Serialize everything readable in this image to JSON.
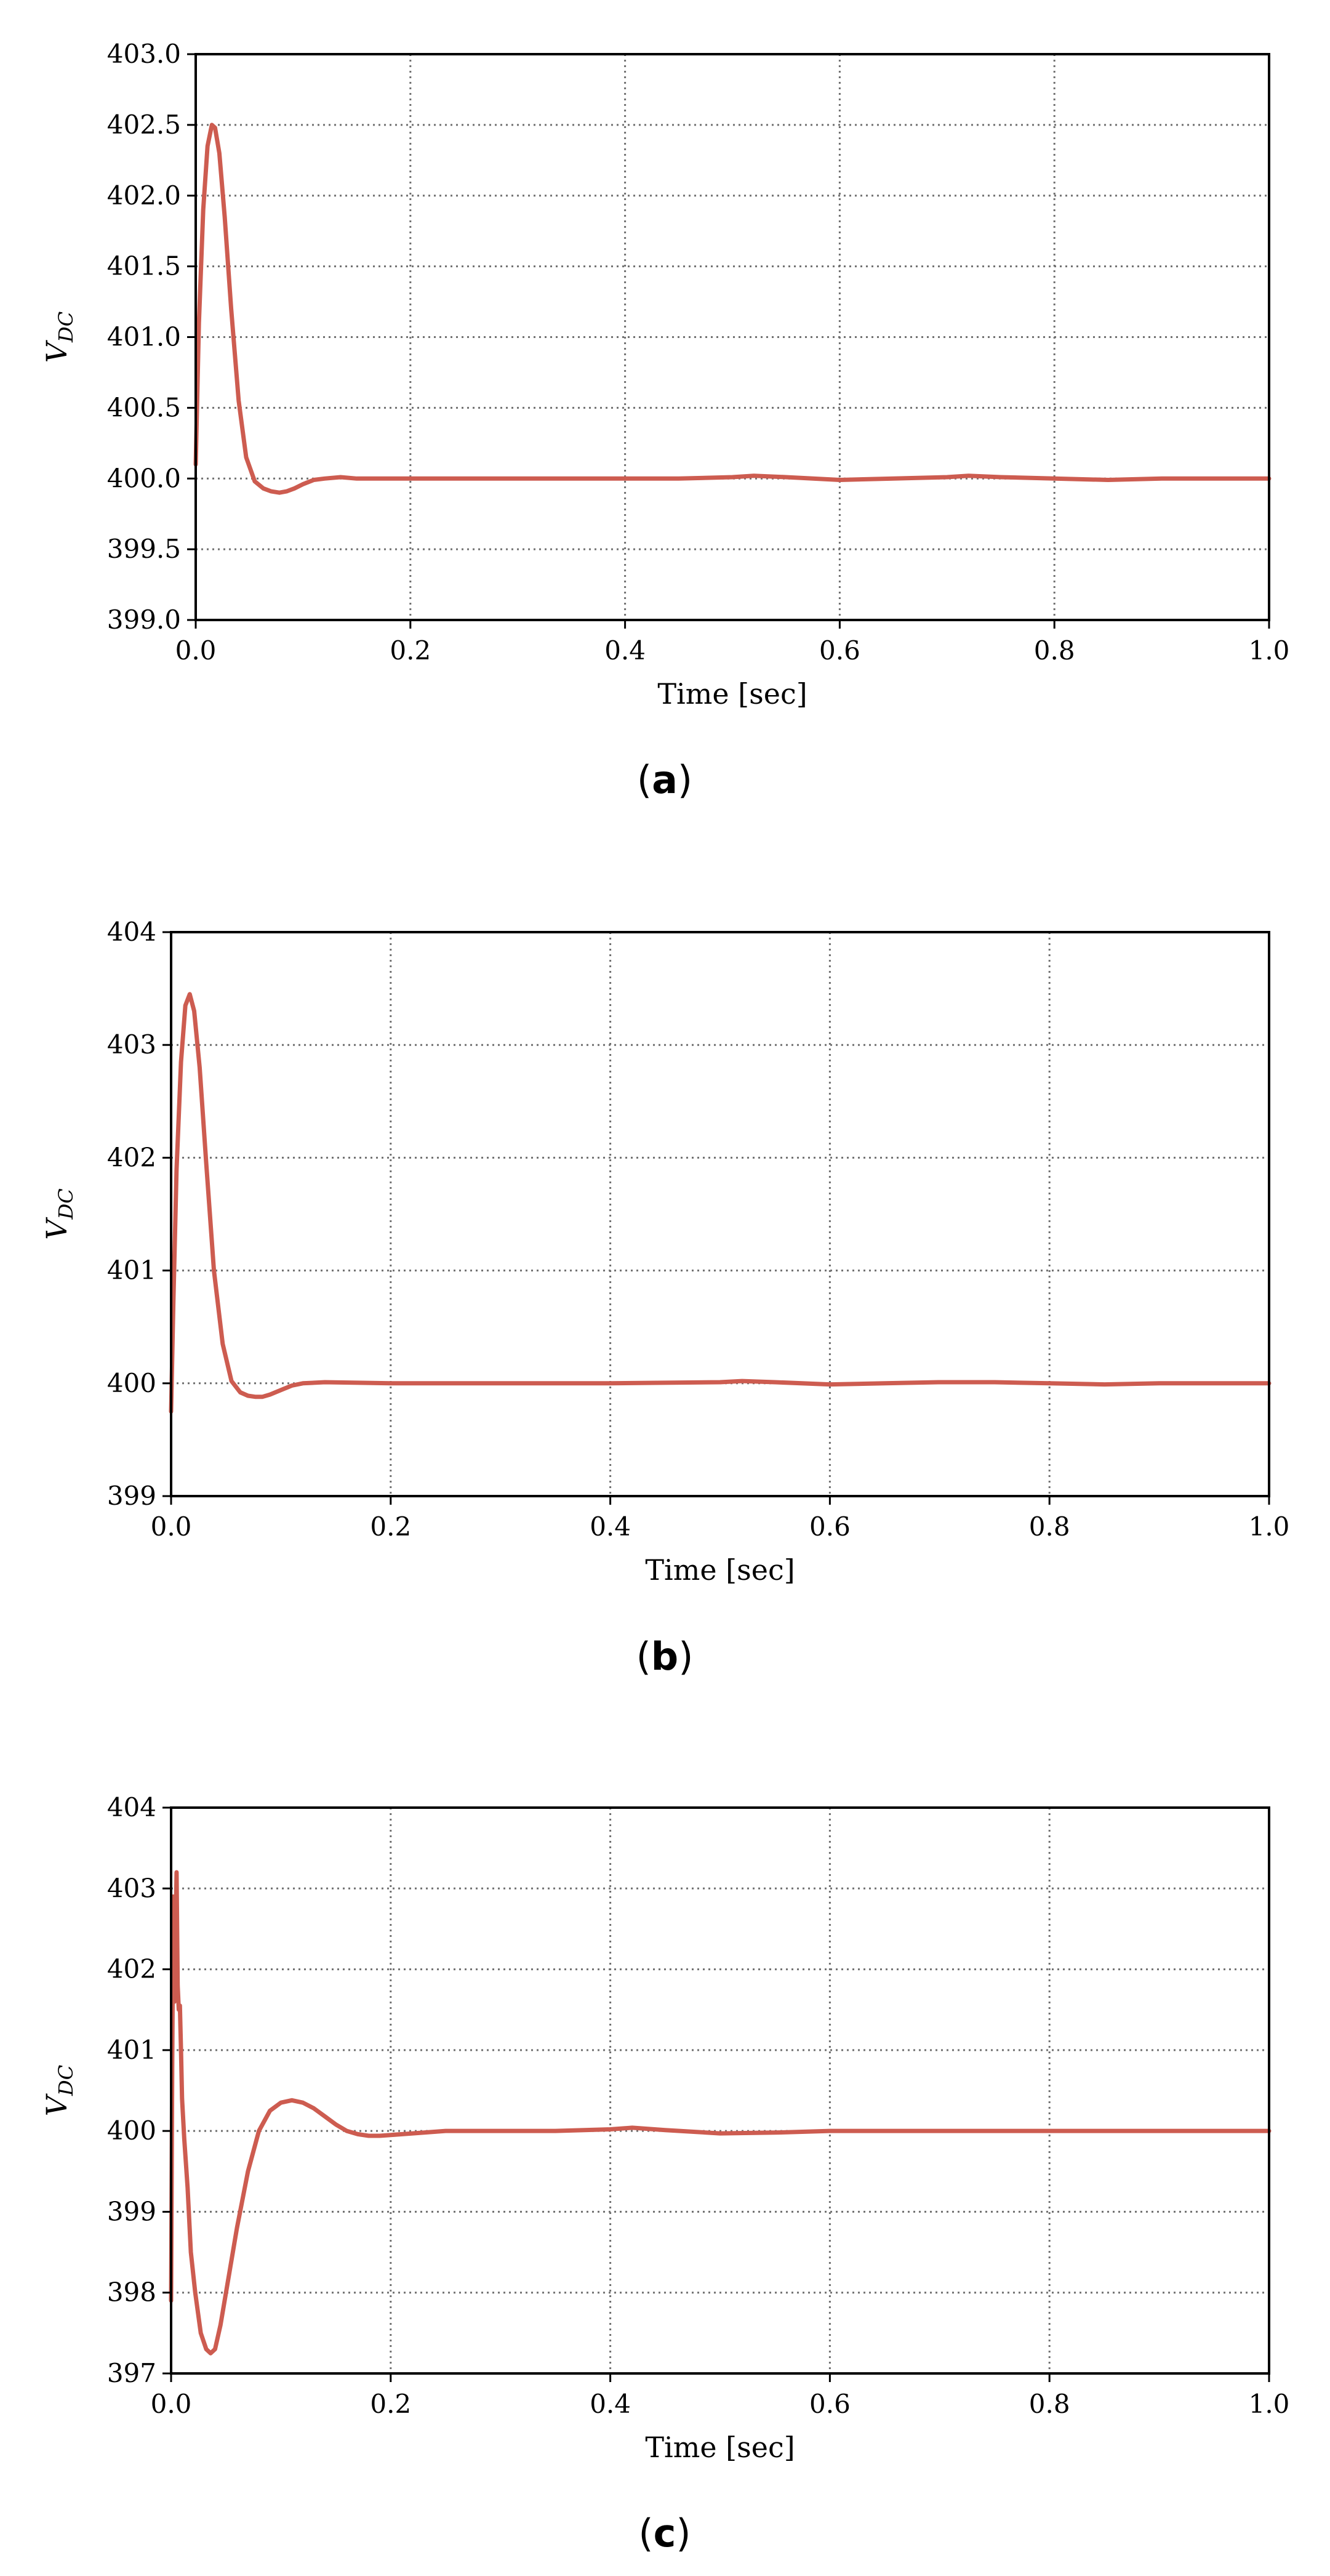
{
  "figure": {
    "colors": {
      "series_line": "#cd5c50",
      "grid": "#707070",
      "frame": "#000000"
    }
  },
  "chart_data": [
    {
      "type": "line",
      "caption": "(a)",
      "caption_letter": "a",
      "xlabel": "Time [sec]",
      "ylabel": "V_DC",
      "xlim": [
        0.0,
        1.0
      ],
      "ylim": [
        399.0,
        403.0
      ],
      "xticks": [
        0.0,
        0.2,
        0.4,
        0.6,
        0.8,
        1.0
      ],
      "xtick_labels": [
        "0.0",
        "0.2",
        "0.4",
        "0.6",
        "0.8",
        "1.0"
      ],
      "yticks": [
        399.0,
        399.5,
        400.0,
        400.5,
        401.0,
        401.5,
        402.0,
        402.5,
        403.0
      ],
      "ytick_labels": [
        "399.0",
        "399.5",
        "400.0",
        "400.5",
        "401.0",
        "401.5",
        "402.0",
        "402.5",
        "403.0"
      ],
      "grid": true,
      "grid_style": "dotted",
      "series": [
        {
          "x": [
            0,
            0.003,
            0.007,
            0.011,
            0.015,
            0.018,
            0.022,
            0.027,
            0.033,
            0.04,
            0.047,
            0.055,
            0.063,
            0.07,
            0.078,
            0.085,
            0.092,
            0.1,
            0.11,
            0.12,
            0.135,
            0.15,
            0.2,
            0.3,
            0.4,
            0.45,
            0.5,
            0.52,
            0.55,
            0.6,
            0.65,
            0.7,
            0.72,
            0.75,
            0.8,
            0.85,
            0.9,
            0.95,
            1.0
          ],
          "y": [
            400.1,
            401.1,
            401.9,
            402.35,
            402.5,
            402.48,
            402.3,
            401.85,
            401.2,
            400.55,
            400.15,
            399.98,
            399.93,
            399.91,
            399.9,
            399.91,
            399.93,
            399.96,
            399.99,
            400.0,
            400.01,
            400.0,
            400.0,
            400.0,
            400.0,
            400.0,
            400.01,
            400.02,
            400.01,
            399.99,
            400.0,
            400.01,
            400.02,
            400.01,
            400.0,
            399.99,
            400.0,
            400.0,
            400.0
          ]
        }
      ]
    },
    {
      "type": "line",
      "caption": "(b)",
      "caption_letter": "b",
      "xlabel": "Time [sec]",
      "ylabel": "V_DC",
      "xlim": [
        0.0,
        1.0
      ],
      "ylim": [
        399,
        404
      ],
      "xticks": [
        0.0,
        0.2,
        0.4,
        0.6,
        0.8,
        1.0
      ],
      "xtick_labels": [
        "0.0",
        "0.2",
        "0.4",
        "0.6",
        "0.8",
        "1.0"
      ],
      "yticks": [
        399,
        400,
        401,
        402,
        403,
        404
      ],
      "ytick_labels": [
        "399",
        "400",
        "401",
        "402",
        "403",
        "404"
      ],
      "grid": true,
      "grid_style": "dotted",
      "series": [
        {
          "x": [
            0,
            0.002,
            0.005,
            0.009,
            0.013,
            0.017,
            0.021,
            0.026,
            0.032,
            0.039,
            0.047,
            0.055,
            0.063,
            0.07,
            0.077,
            0.083,
            0.09,
            0.1,
            0.11,
            0.12,
            0.14,
            0.2,
            0.3,
            0.4,
            0.5,
            0.52,
            0.55,
            0.6,
            0.65,
            0.7,
            0.75,
            0.8,
            0.85,
            0.9,
            1.0
          ],
          "y": [
            399.75,
            400.7,
            401.9,
            402.85,
            403.35,
            403.45,
            403.3,
            402.8,
            401.95,
            401.0,
            400.35,
            400.02,
            399.92,
            399.89,
            399.88,
            399.88,
            399.9,
            399.94,
            399.98,
            400.0,
            400.01,
            400.0,
            400.0,
            400.0,
            400.01,
            400.02,
            400.01,
            399.99,
            400.0,
            400.01,
            400.01,
            400.0,
            399.99,
            400.0,
            400.0
          ]
        }
      ]
    },
    {
      "type": "line",
      "caption": "(c)",
      "caption_letter": "c",
      "xlabel": "Time [sec]",
      "ylabel": "V_DC",
      "xlim": [
        0.0,
        1.0
      ],
      "ylim": [
        397,
        404
      ],
      "xticks": [
        0.0,
        0.2,
        0.4,
        0.6,
        0.8,
        1.0
      ],
      "xtick_labels": [
        "0.0",
        "0.2",
        "0.4",
        "0.6",
        "0.8",
        "1.0"
      ],
      "yticks": [
        397,
        398,
        399,
        400,
        401,
        402,
        403,
        404
      ],
      "ytick_labels": [
        "397",
        "398",
        "399",
        "400",
        "401",
        "402",
        "403",
        "404"
      ],
      "grid": true,
      "grid_style": "dotted",
      "series": [
        {
          "x": [
            0,
            0.001,
            0.002,
            0.003,
            0.004,
            0.005,
            0.006,
            0.007,
            0.008,
            0.009,
            0.01,
            0.012,
            0.015,
            0.018,
            0.022,
            0.027,
            0.032,
            0.036,
            0.04,
            0.045,
            0.05,
            0.06,
            0.07,
            0.08,
            0.09,
            0.1,
            0.11,
            0.12,
            0.13,
            0.14,
            0.15,
            0.16,
            0.17,
            0.18,
            0.19,
            0.2,
            0.22,
            0.25,
            0.3,
            0.35,
            0.4,
            0.42,
            0.45,
            0.5,
            0.55,
            0.6,
            0.65,
            0.7,
            0.8,
            0.9,
            1.0
          ],
          "y": [
            397.9,
            400.8,
            402.9,
            401.6,
            402.4,
            403.2,
            401.8,
            401.5,
            401.55,
            401.0,
            400.4,
            399.9,
            399.3,
            398.5,
            398.0,
            397.5,
            397.3,
            397.25,
            397.3,
            397.6,
            398.0,
            398.8,
            399.5,
            400.0,
            400.25,
            400.35,
            400.38,
            400.35,
            400.28,
            400.18,
            400.08,
            400.0,
            399.96,
            399.94,
            399.94,
            399.95,
            399.97,
            400.0,
            400.0,
            400.0,
            400.02,
            400.04,
            400.01,
            399.97,
            399.98,
            400.0,
            400.0,
            400.0,
            400.0,
            400.0,
            400.0
          ]
        }
      ]
    }
  ]
}
